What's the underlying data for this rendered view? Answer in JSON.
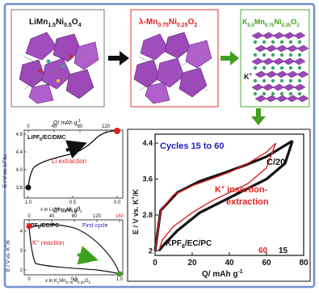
{
  "structures": {
    "s1": {
      "formula_main": "LiMn",
      "sub1": "1.5",
      "mid": "Ni",
      "sub2": "0.5",
      "tail": "O",
      "sub3": "4"
    },
    "s2": {
      "prefix": "λ-Mn",
      "sub1": "0.75",
      "mid": "Ni",
      "sub2": "0.25",
      "tail": "O",
      "sub3": "2"
    },
    "s3": {
      "prefix": "K",
      "sub1": "0.5",
      "mid": "Mn",
      "sub2": "0.75",
      "mid2": "Ni",
      "sub3": "0.25",
      "tail": "O",
      "sub4": "2"
    },
    "k_label": "K",
    "k_sup": "+"
  },
  "plot1": {
    "top_axis": "Q/ mAh g",
    "top_axis_sup": "-1",
    "top_ticks": [
      "0",
      "40",
      "80",
      "120"
    ],
    "y_ticks": [
      "3.6",
      "4.0",
      "4.4",
      "4.8"
    ],
    "y_label": "E / V vs. Li",
    "y_label_sup": "+",
    "y_label_tail": "/Li",
    "electrolyte": "LiPF",
    "electrolyte_sub": "6",
    "electrolyte_tail": "/EC/DMC",
    "annotation": "Li extraction",
    "x_ticks": [
      "1.0",
      "0.5",
      "0.0"
    ],
    "x_label": "x in Li",
    "x_label_sub": "x",
    "x_label_mid": "Mn",
    "x_label_sub2": "1.5",
    "x_label_mid2": "Ni",
    "x_label_sub3": "0.5",
    "x_label_tail": "O",
    "x_label_sub4": "4"
  },
  "plot2": {
    "top_axis": "Q/ mAh g",
    "top_axis_sup": "-1",
    "top_ticks": [
      "0",
      "40",
      "80",
      "120",
      "160"
    ],
    "y_ticks": [
      "2",
      "3",
      "4"
    ],
    "y_label": "E / V vs. K",
    "y_label_sup": "+",
    "y_label_tail": "/K",
    "electrolyte": "KPF",
    "electrolyte_sub": "6",
    "electrolyte_tail": "/EC/PC",
    "cycle_label": "First cycle",
    "annotation": "K",
    "annotation_sup": "+",
    "annotation_tail": " reaction",
    "x_ticks": [
      "0",
      "0.5",
      "1.0"
    ],
    "x_label": "x in K",
    "x_label_sub": "x",
    "x_label_mid": "Mn",
    "x_label_sub2": "0.75",
    "x_label_mid2": "Ni",
    "x_label_sub3": "0.25",
    "x_label_tail": "O",
    "x_label_sub4": "2"
  },
  "plot3": {
    "cycles_label": "Cycles 15 to 60",
    "rate_label": "C/20",
    "annotation_line1": "K",
    "annotation_sup": "+",
    "annotation_line1_tail": " insertion-",
    "annotation_line2": "extraction",
    "electrolyte": "KPF",
    "electrolyte_sub": "6",
    "electrolyte_tail": "/EC/PC",
    "legend_60": "60",
    "legend_15": "15",
    "x_label": "Q/ mAh g",
    "x_label_sup": "-1",
    "y_label": "E / V vs. K",
    "y_label_sup": "+",
    "y_label_tail": "/K"
  },
  "chart_data": {
    "type": "line",
    "xlabel": "Q/ mAh g-1",
    "ylabel": "E / V vs. K+/K",
    "xlim": [
      0,
      80
    ],
    "ylim": [
      1.9,
      4.6
    ],
    "x_ticks": [
      "0",
      "20",
      "40",
      "60",
      "80"
    ],
    "y_ticks": [
      "2",
      "2.8",
      "3.6",
      "4.4"
    ],
    "series": [
      {
        "name": "60",
        "color": "#e02020",
        "charge": [
          [
            0,
            2.0
          ],
          [
            3,
            2.9
          ],
          [
            10,
            3.25
          ],
          [
            20,
            3.45
          ],
          [
            30,
            3.6
          ],
          [
            40,
            3.75
          ],
          [
            50,
            3.95
          ],
          [
            60,
            4.2
          ],
          [
            65,
            4.4
          ]
        ],
        "discharge": [
          [
            65,
            4.4
          ],
          [
            60,
            3.85
          ],
          [
            50,
            3.5
          ],
          [
            40,
            3.3
          ],
          [
            30,
            3.1
          ],
          [
            20,
            2.85
          ],
          [
            10,
            2.55
          ],
          [
            4,
            2.25
          ],
          [
            2,
            2.0
          ]
        ]
      },
      {
        "name": "15",
        "color": "#111111",
        "charge": [
          [
            0,
            2.0
          ],
          [
            3,
            2.9
          ],
          [
            12,
            3.3
          ],
          [
            24,
            3.55
          ],
          [
            36,
            3.72
          ],
          [
            48,
            3.9
          ],
          [
            60,
            4.1
          ],
          [
            70,
            4.35
          ],
          [
            74,
            4.45
          ]
        ],
        "discharge": [
          [
            74,
            4.45
          ],
          [
            70,
            3.95
          ],
          [
            60,
            3.6
          ],
          [
            48,
            3.35
          ],
          [
            36,
            3.1
          ],
          [
            24,
            2.85
          ],
          [
            12,
            2.45
          ],
          [
            5,
            2.15
          ],
          [
            2,
            2.0
          ]
        ]
      }
    ]
  },
  "colors": {
    "frame": "#6f90cc",
    "struct_box": "#555555",
    "arrow_black": "#111111",
    "arrow_red": "#e02020",
    "arrow_green": "#40a020",
    "octa": "#9c48b8",
    "k_ion": "#3aa56a",
    "blue_text": "#2020c0",
    "red_text": "#e02020"
  }
}
